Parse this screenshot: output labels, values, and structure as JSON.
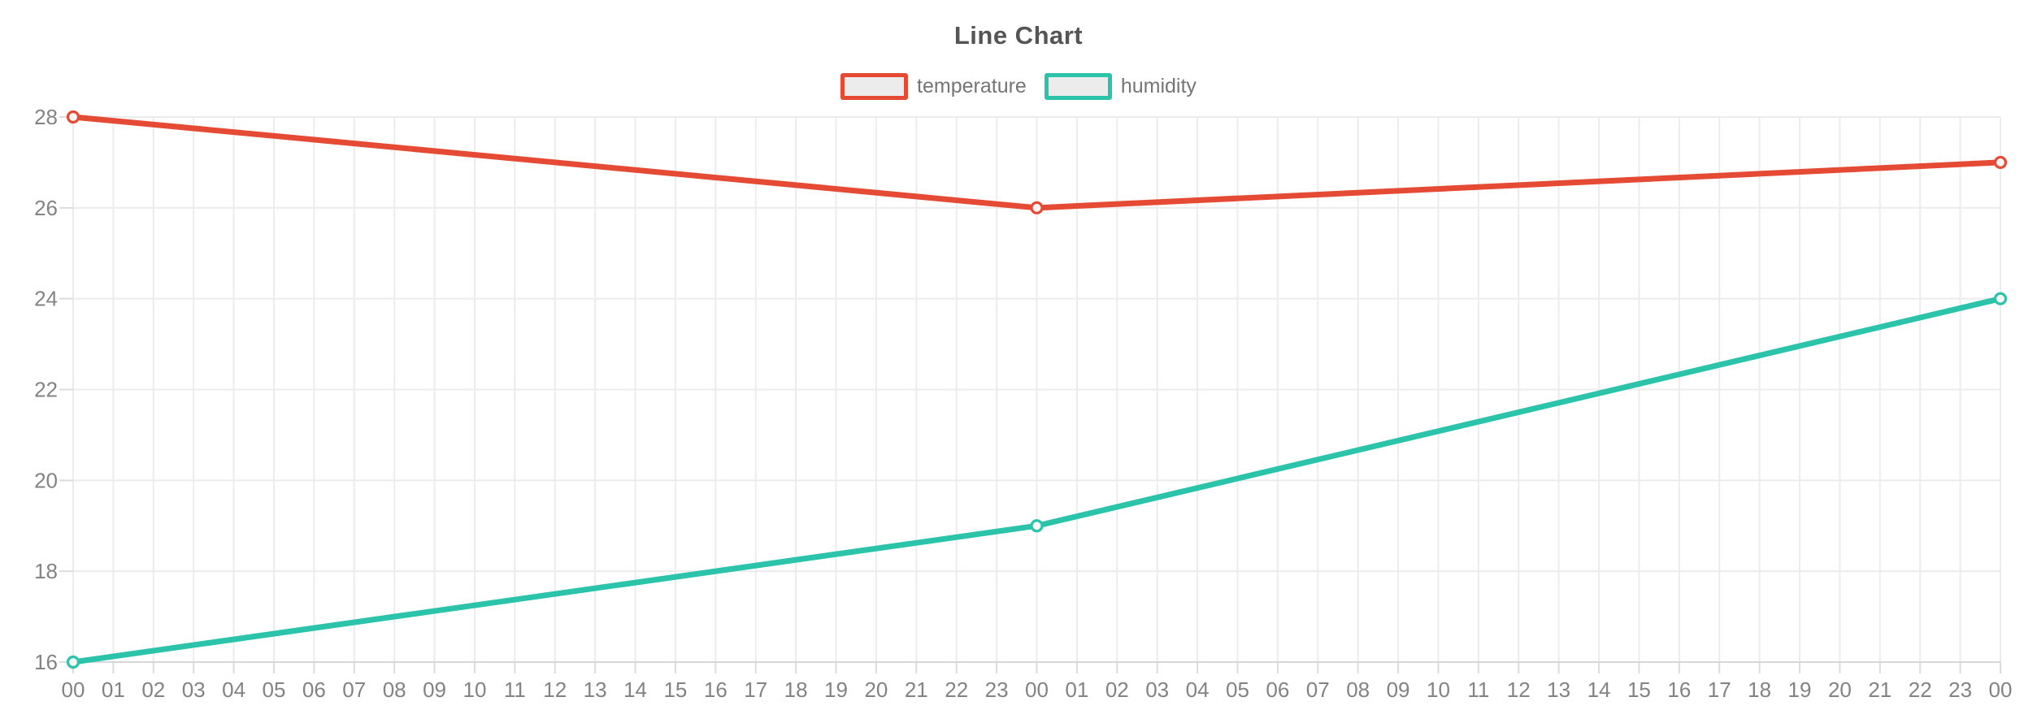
{
  "chart_data": {
    "type": "line",
    "title": "Line Chart",
    "xlabel": "",
    "ylabel": "",
    "ylim": [
      16,
      28
    ],
    "y_ticks": [
      16,
      18,
      20,
      22,
      24,
      26,
      28
    ],
    "grid": true,
    "legend_position": "top-center",
    "x_tick_labels": [
      "00",
      "01",
      "02",
      "03",
      "04",
      "05",
      "06",
      "07",
      "08",
      "09",
      "10",
      "11",
      "12",
      "13",
      "14",
      "15",
      "16",
      "17",
      "18",
      "19",
      "20",
      "21",
      "22",
      "23",
      "00",
      "01",
      "02",
      "03",
      "04",
      "05",
      "06",
      "07",
      "08",
      "09",
      "10",
      "11",
      "12",
      "13",
      "14",
      "15",
      "16",
      "17",
      "18",
      "19",
      "20",
      "21",
      "22",
      "23",
      "00"
    ],
    "series": [
      {
        "name": "temperature",
        "color": "#e54b34",
        "points": [
          {
            "x_index": 0,
            "x_label": "00",
            "value": 28
          },
          {
            "x_index": 24,
            "x_label": "00",
            "value": 26
          },
          {
            "x_index": 48,
            "x_label": "00",
            "value": 27
          }
        ]
      },
      {
        "name": "humidity",
        "color": "#2bc3aa",
        "points": [
          {
            "x_index": 0,
            "x_label": "00",
            "value": 16
          },
          {
            "x_index": 24,
            "x_label": "00",
            "value": 19
          },
          {
            "x_index": 48,
            "x_label": "00",
            "value": 24
          }
        ]
      }
    ],
    "style_colors": {
      "background": "#ffffff",
      "grid_line": "#ececec",
      "axis_line": "#d7d7d7",
      "tick_mark": "#dcdcdc",
      "tick_label_text": "#838383",
      "title_text": "#555555",
      "legend_text": "#757575",
      "legend_swatch_fill": "#ececec",
      "marker_fill": "#f7f6f5"
    }
  }
}
